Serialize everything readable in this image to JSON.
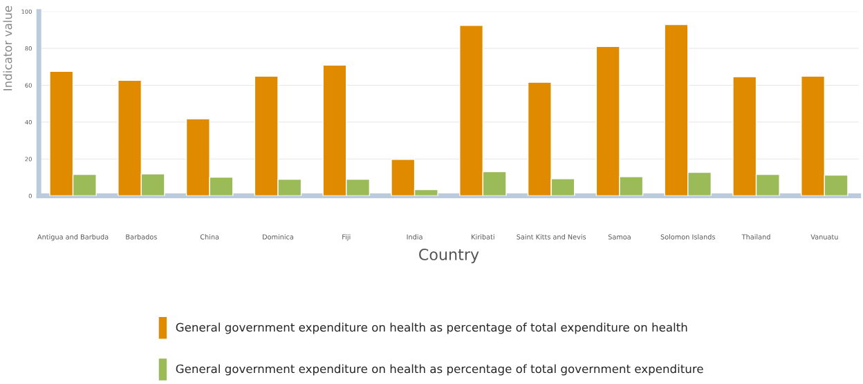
{
  "chart_data": {
    "type": "bar",
    "xlabel": "Country",
    "ylabel": "Indicator value",
    "categories": [
      "Antigua and Barbuda",
      "Barbados",
      "China",
      "Dominica",
      "Fiji",
      "India",
      "Kiribati",
      "Saint Kitts and Nevis",
      "Samoa",
      "Solomon Islands",
      "Thailand",
      "Vanuatu"
    ],
    "series": [
      {
        "name": "General government expenditure on health as percentage of total expenditure on health",
        "color": "#e08a00",
        "values": [
          67.5,
          62.7,
          41.8,
          64.9,
          70.9,
          19.8,
          92.5,
          61.6,
          81.0,
          92.9,
          64.6,
          64.9
        ]
      },
      {
        "name": "General government expenditure on health as percentage of total government expenditure",
        "color": "#9bbb59",
        "values": [
          11.6,
          11.9,
          10.1,
          9.0,
          9.0,
          3.4,
          13.1,
          9.3,
          10.4,
          12.7,
          11.6,
          11.2
        ]
      }
    ],
    "ylim": [
      0,
      100
    ],
    "yticks": [
      0,
      20,
      40,
      60,
      80,
      100
    ],
    "grid": "y",
    "legend": "bottom"
  }
}
